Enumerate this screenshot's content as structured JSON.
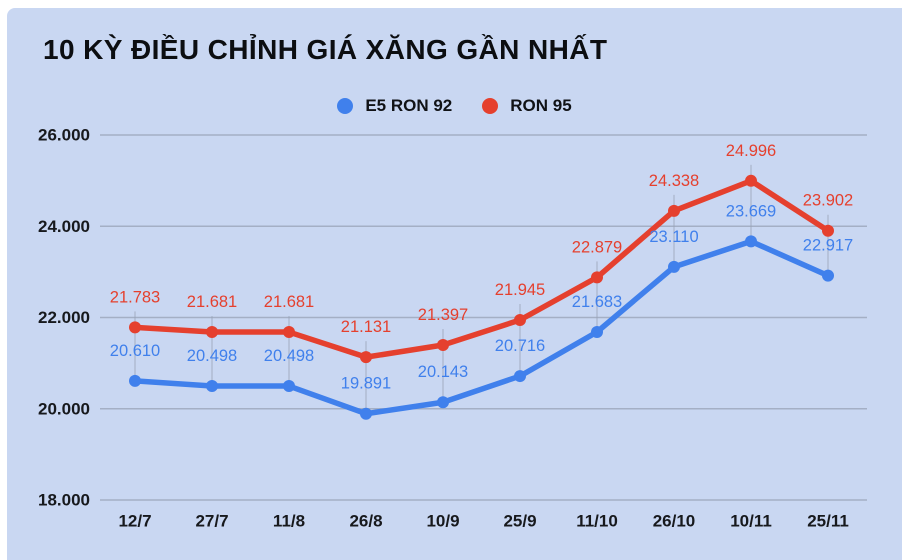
{
  "colors": {
    "page_bg": "#ffffff",
    "card_bg": "#c9d7f2",
    "grid": "#98a2b6",
    "axis_text": "#17191d",
    "title_text": "#0c0e11",
    "series_blue": "#4080ec",
    "series_red": "#e5402e"
  },
  "chart_data": {
    "type": "line",
    "title": "10 KỲ ĐIỀU CHỈNH GIÁ XĂNG GẦN NHẤT",
    "legend_position": "top",
    "grid": "horizontal",
    "xlabel": "",
    "ylabel": "",
    "ylim": [
      18000,
      26000
    ],
    "yticks": [
      {
        "value": 26000,
        "label": "26.000"
      },
      {
        "value": 24000,
        "label": "24.000"
      },
      {
        "value": 22000,
        "label": "22.000"
      },
      {
        "value": 20000,
        "label": "20.000"
      },
      {
        "value": 18000,
        "label": "18.000"
      }
    ],
    "categories": [
      "12/7",
      "27/7",
      "11/8",
      "26/8",
      "10/9",
      "25/9",
      "11/10",
      "26/10",
      "10/11",
      "25/11"
    ],
    "series": [
      {
        "name": "E5 RON 92",
        "color": "#4080ec",
        "values": [
          20610,
          20498,
          20498,
          19891,
          20143,
          20716,
          21683,
          23110,
          23669,
          22917
        ],
        "labels": [
          "20.610",
          "20.498",
          "20.498",
          "19.891",
          "20.143",
          "20.716",
          "21.683",
          "23.110",
          "23.669",
          "22.917"
        ]
      },
      {
        "name": "RON 95",
        "color": "#e5402e",
        "values": [
          21783,
          21681,
          21681,
          21131,
          21397,
          21945,
          22879,
          24338,
          24996,
          23902
        ],
        "labels": [
          "21.783",
          "21.681",
          "21.681",
          "21.131",
          "21.397",
          "21.945",
          "22.879",
          "24.338",
          "24.996",
          "23.902"
        ]
      }
    ]
  }
}
